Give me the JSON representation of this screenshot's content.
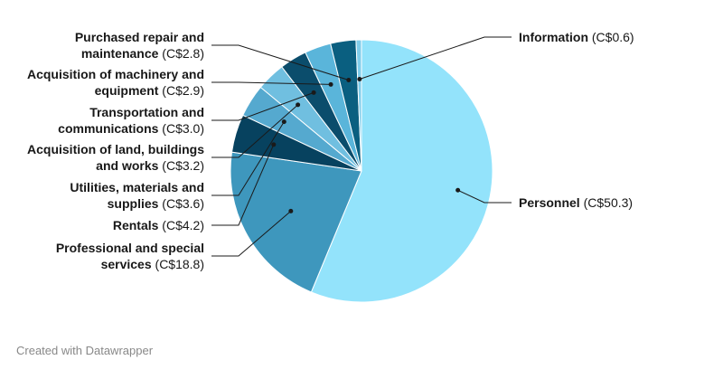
{
  "chart_data": {
    "type": "pie",
    "title": "",
    "currency_prefix": "C$",
    "slices": [
      {
        "name": "Personnel",
        "value": 50.3,
        "color": "#93e3fb"
      },
      {
        "name": "Professional and special services",
        "value": 18.8,
        "color": "#3e97bd"
      },
      {
        "name": "Rentals",
        "value": 4.2,
        "color": "#07425f"
      },
      {
        "name": "Utilities, materials and supplies",
        "value": 3.6,
        "color": "#55a9cf"
      },
      {
        "name": "Acquisition of land, buildings and works",
        "value": 3.2,
        "color": "#70bfe0"
      },
      {
        "name": "Transportation and communications",
        "value": 3.0,
        "color": "#0b4d6c"
      },
      {
        "name": "Acquisition of machinery and equipment",
        "value": 2.9,
        "color": "#5ab5da"
      },
      {
        "name": "Purchased repair and maintenance",
        "value": 2.8,
        "color": "#0a5f80"
      },
      {
        "name": "Information",
        "value": 0.6,
        "color": "#7fcdeb"
      }
    ],
    "labels": [
      {
        "lines": [
          {
            "name": "Purchased repair and",
            "value": ""
          },
          {
            "name": "maintenance",
            "value": "C$2.8"
          }
        ]
      },
      {
        "lines": [
          {
            "name": "Acquisition of machinery and",
            "value": ""
          },
          {
            "name": "equipment",
            "value": "C$2.9"
          }
        ]
      },
      {
        "lines": [
          {
            "name": "Transportation and",
            "value": ""
          },
          {
            "name": "communications",
            "value": "C$3.0"
          }
        ]
      },
      {
        "lines": [
          {
            "name": "Acquisition of land, buildings",
            "value": ""
          },
          {
            "name": "and works",
            "value": "C$3.2"
          }
        ]
      },
      {
        "lines": [
          {
            "name": "Utilities, materials and",
            "value": ""
          },
          {
            "name": "supplies",
            "value": "C$3.6"
          }
        ]
      },
      {
        "lines": [
          {
            "name": "Rentals",
            "value": "C$4.2"
          }
        ]
      },
      {
        "lines": [
          {
            "name": "Professional and special",
            "value": ""
          },
          {
            "name": "services",
            "value": "C$18.8"
          }
        ]
      },
      {
        "lines": [
          {
            "name": "Information",
            "value": "C$0.6"
          }
        ]
      },
      {
        "lines": [
          {
            "name": "Personnel",
            "value": "C$50.3"
          }
        ]
      }
    ]
  },
  "footer": {
    "credit": "Created with Datawrapper"
  }
}
